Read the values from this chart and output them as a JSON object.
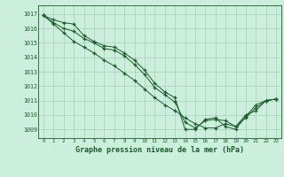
{
  "title": "Graphe pression niveau de la mer (hPa)",
  "bg_color": "#cceedd",
  "grid_color": "#aaccbb",
  "line_color": "#1a5c2a",
  "xlim": [
    -0.5,
    23.5
  ],
  "ylim": [
    1008.4,
    1017.6
  ],
  "yticks": [
    1009,
    1010,
    1011,
    1012,
    1013,
    1014,
    1015,
    1016,
    1017
  ],
  "xticks": [
    0,
    1,
    2,
    3,
    4,
    5,
    6,
    7,
    8,
    9,
    10,
    11,
    12,
    13,
    14,
    15,
    16,
    17,
    18,
    19,
    20,
    21,
    22,
    23
  ],
  "series": [
    [
      1016.9,
      1016.6,
      1016.4,
      1016.3,
      1015.5,
      1015.1,
      1014.8,
      1014.7,
      1014.3,
      1013.8,
      1013.1,
      1012.2,
      1011.6,
      1011.2,
      1009.0,
      1009.0,
      1009.7,
      1009.8,
      1009.2,
      1009.0,
      1009.9,
      1010.7,
      1011.0,
      1011.1
    ],
    [
      1016.9,
      1016.4,
      1016.0,
      1015.8,
      1015.3,
      1015.0,
      1014.6,
      1014.5,
      1014.1,
      1013.5,
      1012.8,
      1011.9,
      1011.4,
      1010.9,
      1009.5,
      1009.1,
      1009.6,
      1009.7,
      1009.6,
      1009.2,
      1009.8,
      1010.5,
      1011.0,
      1011.1
    ],
    [
      1016.9,
      1016.3,
      1015.7,
      1015.1,
      1014.7,
      1014.3,
      1013.8,
      1013.4,
      1012.9,
      1012.4,
      1011.8,
      1011.2,
      1010.7,
      1010.3,
      1009.8,
      1009.4,
      1009.1,
      1009.1,
      1009.4,
      1009.2,
      1010.0,
      1010.3,
      1011.0,
      1011.1
    ]
  ]
}
